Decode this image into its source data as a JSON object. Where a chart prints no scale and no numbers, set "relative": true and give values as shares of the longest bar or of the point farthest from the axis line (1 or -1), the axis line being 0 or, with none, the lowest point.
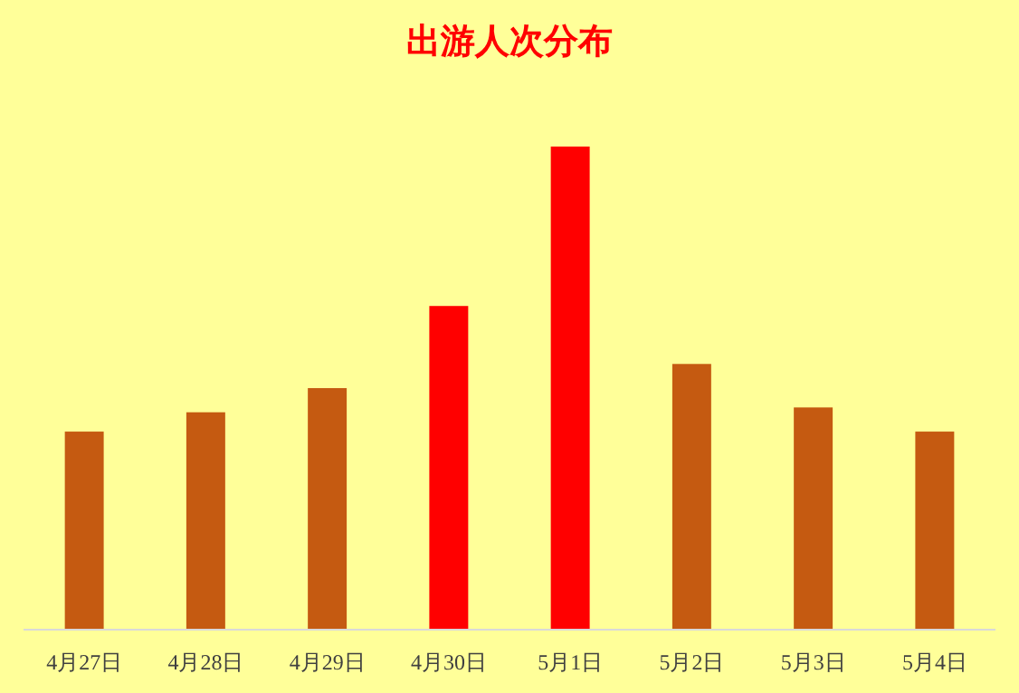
{
  "chart_data": {
    "type": "bar",
    "title": "出游人次分布",
    "relative": true,
    "categories": [
      "4月27日",
      "4月28日",
      "4月29日",
      "4月30日",
      "5月1日",
      "5月2日",
      "5月3日",
      "5月4日"
    ],
    "values": [
      0.41,
      0.45,
      0.5,
      0.67,
      1,
      0.55,
      0.46,
      0.41
    ],
    "colors": [
      "#c55a11",
      "#c55a11",
      "#c55a11",
      "#ff0000",
      "#ff0000",
      "#c55a11",
      "#c55a11",
      "#c55a11"
    ]
  }
}
